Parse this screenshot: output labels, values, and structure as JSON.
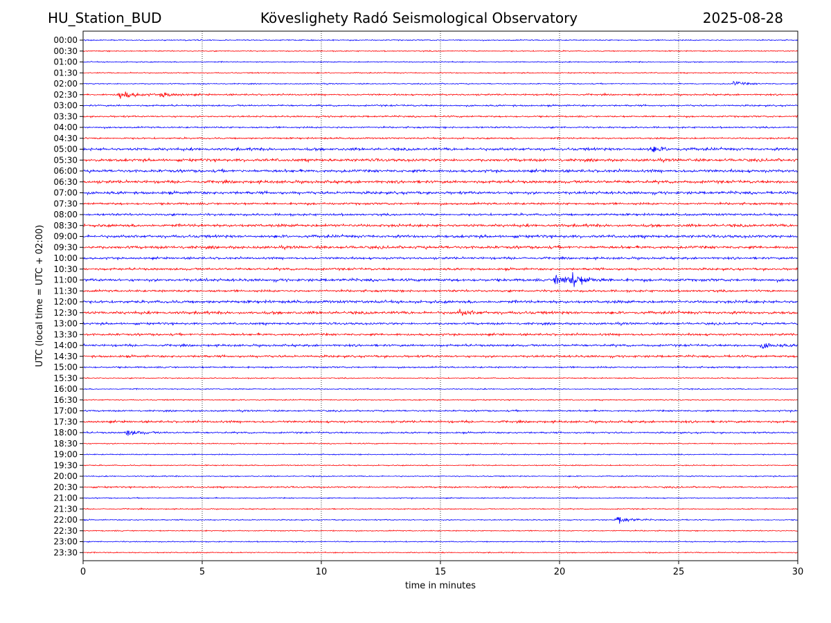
{
  "header": {
    "station": "HU_Station_BUD",
    "title": "Köveslighety Radó Seismological Observatory",
    "date": "2025-08-28"
  },
  "chart_data": {
    "type": "line",
    "xlabel": "time in minutes",
    "ylabel": "UTC (local time = UTC + 02:00)",
    "xlim": [
      0,
      30
    ],
    "x_ticks": [
      "0",
      "5",
      "10",
      "15",
      "20",
      "25",
      "30"
    ],
    "x_grid": true,
    "trace_colors": [
      "#0000ff",
      "#ff0000"
    ],
    "rows": [
      "00:00",
      "00:30",
      "01:00",
      "01:30",
      "02:00",
      "02:30",
      "03:00",
      "03:30",
      "04:00",
      "04:30",
      "05:00",
      "05:30",
      "06:00",
      "06:30",
      "07:00",
      "07:30",
      "08:00",
      "08:30",
      "09:00",
      "09:30",
      "10:00",
      "10:30",
      "11:00",
      "11:30",
      "12:00",
      "12:30",
      "13:00",
      "13:30",
      "14:00",
      "14:30",
      "15:00",
      "15:30",
      "16:00",
      "16:30",
      "17:00",
      "17:30",
      "18:00",
      "18:30",
      "19:00",
      "19:30",
      "20:00",
      "20:30",
      "21:00",
      "21:30",
      "22:00",
      "22:30",
      "23:00",
      "23:30"
    ],
    "noise_level": [
      2,
      2,
      2,
      2,
      2,
      3,
      3,
      3,
      3,
      3,
      5,
      5,
      5,
      5,
      5,
      4,
      4,
      5,
      5,
      5,
      4,
      4,
      5,
      4,
      5,
      5,
      4,
      4,
      4,
      4,
      3,
      2,
      2,
      2,
      3,
      4,
      3,
      2,
      2,
      2,
      2,
      3,
      2,
      2,
      2,
      2,
      2,
      2
    ],
    "events": [
      {
        "row": "02:30",
        "minute": 1.5,
        "amplitude": 12
      },
      {
        "row": "02:30",
        "minute": 3.3,
        "amplitude": 6
      },
      {
        "row": "11:00",
        "minute": 19.8,
        "amplitude": 18
      },
      {
        "row": "11:00",
        "minute": 20.5,
        "amplitude": 15
      },
      {
        "row": "18:00",
        "minute": 1.8,
        "amplitude": 8
      },
      {
        "row": "22:00",
        "minute": 22.4,
        "amplitude": 10
      },
      {
        "row": "12:30",
        "minute": 15.8,
        "amplitude": 6
      },
      {
        "row": "14:00",
        "minute": 28.5,
        "amplitude": 7
      },
      {
        "row": "05:00",
        "minute": 23.8,
        "amplitude": 6
      },
      {
        "row": "02:00",
        "minute": 27.3,
        "amplitude": 5
      }
    ]
  }
}
